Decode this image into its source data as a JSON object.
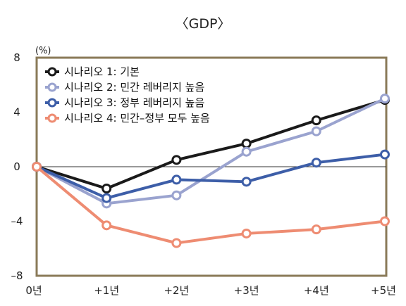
{
  "chart_data": {
    "type": "line",
    "title": "〈GDP〉",
    "y_unit_label": "(%)",
    "categories": [
      "0년",
      "+1년",
      "+2년",
      "+3년",
      "+4년",
      "+5년"
    ],
    "ylim": [
      -8,
      8
    ],
    "yticks": [
      "8",
      "4",
      "0",
      "–4",
      "–8"
    ],
    "ytick_values": [
      8,
      4,
      0,
      -4,
      -8
    ],
    "grid": false,
    "zero_line": true,
    "legend_position": "top-left",
    "series": [
      {
        "name": "시나리오 1: 기본",
        "color": "#1a1a1a",
        "values": [
          0,
          -1.6,
          0.5,
          1.7,
          3.4,
          4.9
        ]
      },
      {
        "name": "시나리오 2: 민간 레버리지 높음",
        "color": "#9aa3cf",
        "values": [
          0,
          -2.7,
          -2.1,
          1.1,
          2.6,
          5.0
        ]
      },
      {
        "name": "시나리오 3: 정부 레버리지 높음",
        "color": "#3d5ea8",
        "values": [
          0,
          -2.3,
          -0.95,
          -1.1,
          0.3,
          0.9
        ]
      },
      {
        "name": "시나리오 4: 민간–정부 모두 높음",
        "color": "#ee8c72",
        "values": [
          0,
          -4.3,
          -5.6,
          -4.9,
          -4.6,
          -4.0
        ]
      }
    ],
    "frame_color": "#8a7a58"
  }
}
